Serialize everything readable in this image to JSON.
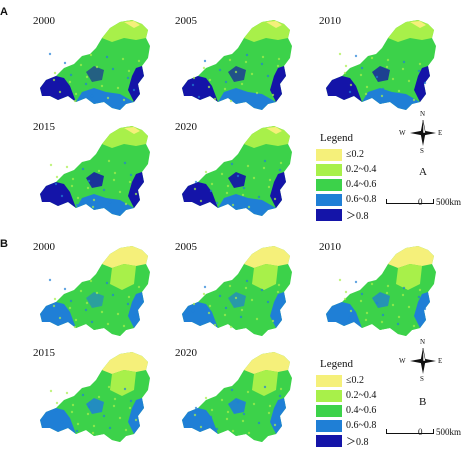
{
  "panels": [
    {
      "tag": "A",
      "letter": "A",
      "maps": [
        {
          "year": "2000"
        },
        {
          "year": "2005"
        },
        {
          "year": "2010"
        },
        {
          "year": "2015"
        },
        {
          "year": "2020"
        }
      ]
    },
    {
      "tag": "B",
      "letter": "B",
      "maps": [
        {
          "year": "2000"
        },
        {
          "year": "2005"
        },
        {
          "year": "2010"
        },
        {
          "year": "2015"
        },
        {
          "year": "2020"
        }
      ]
    }
  ],
  "legend": {
    "title": "Legend",
    "classes": [
      {
        "label": "≤0.2",
        "color": "#f5f07a"
      },
      {
        "label": "0.2~0.4",
        "color": "#a8f04a"
      },
      {
        "label": "0.4~0.6",
        "color": "#3cd24a"
      },
      {
        "label": "0.6~0.8",
        "color": "#1f7fd6"
      },
      {
        "label": "＞0.8",
        "color": "#1414a8"
      }
    ]
  },
  "compass": {
    "n": "N",
    "s": "S",
    "e": "E",
    "w": "W"
  },
  "scale": {
    "start": "0",
    "end": "500km"
  }
}
